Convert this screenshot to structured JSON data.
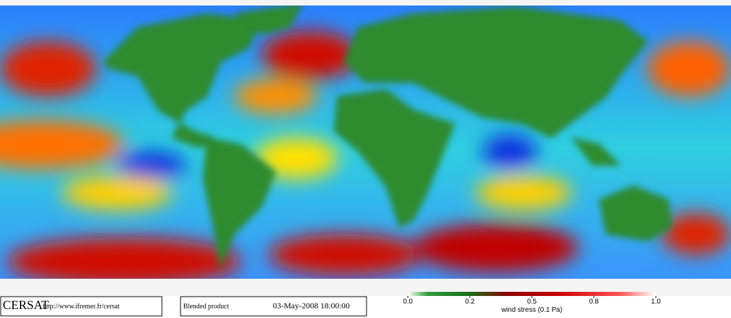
{
  "logo": "CERSAT",
  "url": "http://www.ifremer.fr/cersat",
  "product": "Blended product",
  "date": "03-May-2008 18:00:00",
  "colorbar": {
    "label": "wind stress (0.1 Pa)",
    "ticks": [
      {
        "value": 0,
        "label": "0.0"
      },
      0.2,
      0.5,
      0.8,
      {
        "value": 1,
        "label": "1.0"
      }
    ]
  }
}
